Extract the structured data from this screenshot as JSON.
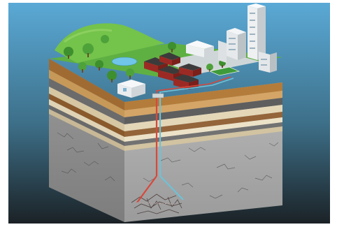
{
  "scene": {
    "colors": {
      "sky_top": "#5aa9d6",
      "sky_bottom": "#1b2226",
      "grass": "#5fb043",
      "soil": "#b07a3a",
      "rock": "#a9a9a9",
      "pipe_hot": "#d8483c",
      "pipe_cold": "#6fc1d6"
    },
    "icons": [
      "tree-icon",
      "house-icon",
      "building-icon",
      "pond-icon",
      "well-icon"
    ]
  }
}
